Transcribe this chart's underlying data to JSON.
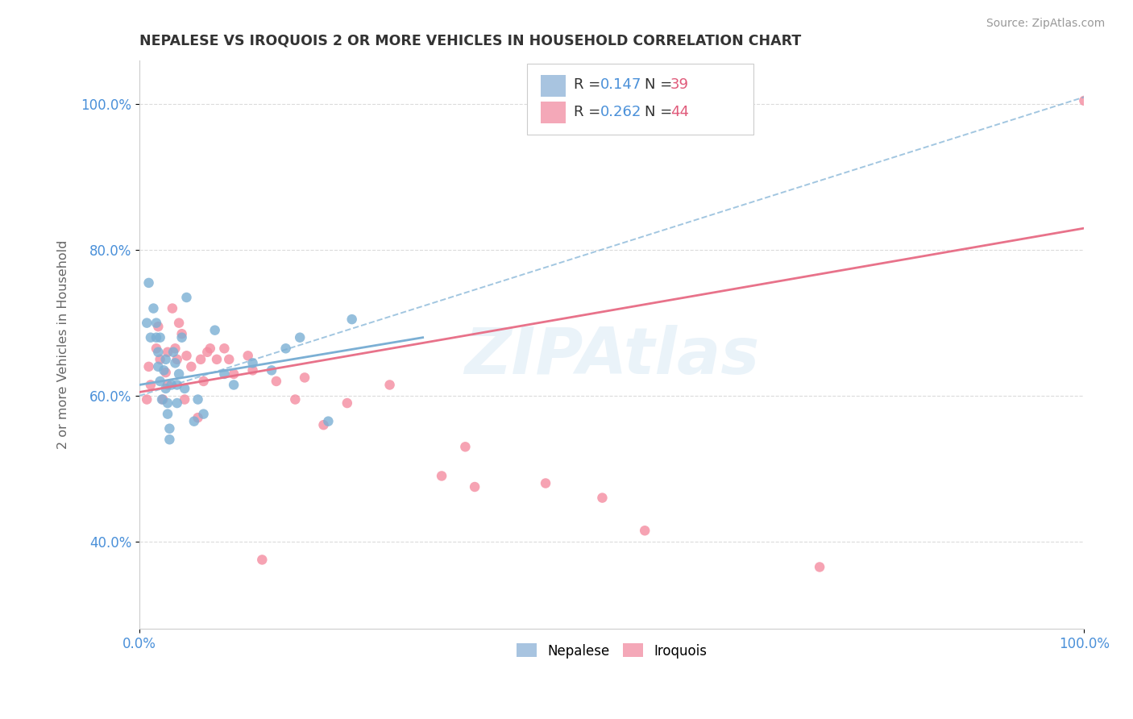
{
  "title": "NEPALESE VS IROQUOIS 2 OR MORE VEHICLES IN HOUSEHOLD CORRELATION CHART",
  "source_text": "Source: ZipAtlas.com",
  "ylabel": "2 or more Vehicles in Household",
  "xmin": 0.0,
  "xmax": 1.0,
  "ymin": 0.28,
  "ymax": 1.06,
  "y_tick_positions": [
    0.4,
    0.6,
    0.8,
    1.0
  ],
  "y_tick_labels": [
    "40.0%",
    "60.0%",
    "80.0%",
    "100.0%"
  ],
  "x_tick_labels": [
    "0.0%",
    "100.0%"
  ],
  "x_tick_positions": [
    0.0,
    1.0
  ],
  "watermark": "ZIPAtlas",
  "nepalese_color": "#7bafd4",
  "iroquois_color": "#f48ca0",
  "iroquois_trend_color": "#e8728a",
  "nepalese_trend_color": "#7bafd4",
  "legend_r_color": "#4a90d9",
  "legend_n_color": "#e05a7a",
  "nepalese_R": "0.147",
  "nepalese_N": "39",
  "iroquois_R": "0.262",
  "iroquois_N": "44",
  "nepalese_scatter": [
    [
      0.008,
      0.7
    ],
    [
      0.01,
      0.755
    ],
    [
      0.012,
      0.68
    ],
    [
      0.015,
      0.72
    ],
    [
      0.018,
      0.7
    ],
    [
      0.018,
      0.68
    ],
    [
      0.02,
      0.66
    ],
    [
      0.02,
      0.64
    ],
    [
      0.022,
      0.68
    ],
    [
      0.022,
      0.62
    ],
    [
      0.024,
      0.595
    ],
    [
      0.026,
      0.635
    ],
    [
      0.028,
      0.65
    ],
    [
      0.028,
      0.61
    ],
    [
      0.03,
      0.59
    ],
    [
      0.03,
      0.575
    ],
    [
      0.032,
      0.555
    ],
    [
      0.032,
      0.54
    ],
    [
      0.034,
      0.615
    ],
    [
      0.036,
      0.66
    ],
    [
      0.038,
      0.645
    ],
    [
      0.04,
      0.615
    ],
    [
      0.04,
      0.59
    ],
    [
      0.042,
      0.63
    ],
    [
      0.045,
      0.68
    ],
    [
      0.048,
      0.61
    ],
    [
      0.05,
      0.735
    ],
    [
      0.058,
      0.565
    ],
    [
      0.062,
      0.595
    ],
    [
      0.068,
      0.575
    ],
    [
      0.08,
      0.69
    ],
    [
      0.09,
      0.63
    ],
    [
      0.1,
      0.615
    ],
    [
      0.12,
      0.645
    ],
    [
      0.14,
      0.635
    ],
    [
      0.155,
      0.665
    ],
    [
      0.17,
      0.68
    ],
    [
      0.2,
      0.565
    ],
    [
      0.225,
      0.705
    ]
  ],
  "iroquois_scatter": [
    [
      0.008,
      0.595
    ],
    [
      0.01,
      0.64
    ],
    [
      0.012,
      0.615
    ],
    [
      0.018,
      0.665
    ],
    [
      0.02,
      0.695
    ],
    [
      0.022,
      0.65
    ],
    [
      0.025,
      0.595
    ],
    [
      0.028,
      0.632
    ],
    [
      0.03,
      0.615
    ],
    [
      0.03,
      0.66
    ],
    [
      0.035,
      0.72
    ],
    [
      0.038,
      0.665
    ],
    [
      0.04,
      0.65
    ],
    [
      0.042,
      0.7
    ],
    [
      0.045,
      0.685
    ],
    [
      0.048,
      0.595
    ],
    [
      0.05,
      0.655
    ],
    [
      0.055,
      0.64
    ],
    [
      0.062,
      0.57
    ],
    [
      0.065,
      0.65
    ],
    [
      0.068,
      0.62
    ],
    [
      0.072,
      0.66
    ],
    [
      0.075,
      0.665
    ],
    [
      0.082,
      0.65
    ],
    [
      0.09,
      0.665
    ],
    [
      0.095,
      0.65
    ],
    [
      0.1,
      0.63
    ],
    [
      0.115,
      0.655
    ],
    [
      0.12,
      0.635
    ],
    [
      0.13,
      0.375
    ],
    [
      0.145,
      0.62
    ],
    [
      0.165,
      0.595
    ],
    [
      0.175,
      0.625
    ],
    [
      0.195,
      0.56
    ],
    [
      0.22,
      0.59
    ],
    [
      0.265,
      0.615
    ],
    [
      0.32,
      0.49
    ],
    [
      0.345,
      0.53
    ],
    [
      0.355,
      0.475
    ],
    [
      0.43,
      0.48
    ],
    [
      0.49,
      0.46
    ],
    [
      0.535,
      0.415
    ],
    [
      0.72,
      0.365
    ],
    [
      1.0,
      1.005
    ]
  ],
  "nepalese_line": [
    0.0,
    0.0,
    0.3,
    0.3
  ],
  "nepalese_line_y0": 0.615,
  "nepalese_line_y1": 0.68,
  "iroquois_line_y0": 0.605,
  "iroquois_line_y1": 0.83,
  "background_color": "#ffffff",
  "grid_color": "#d8d8d8",
  "title_color": "#333333",
  "title_fontsize": 12.5,
  "axis_label_color": "#666666",
  "tick_label_color": "#4a90d9",
  "marker_size": 9,
  "nepalese_label": "Nepalese",
  "iroquois_label": "Iroquois"
}
